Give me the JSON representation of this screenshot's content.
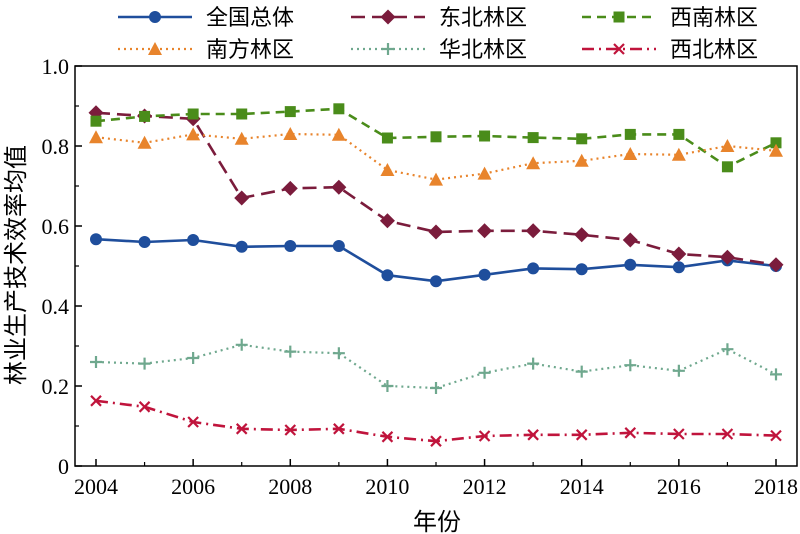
{
  "chart_data": {
    "type": "line",
    "xlabel": "年份",
    "ylabel": "林业生产技术效率均值",
    "xlim": [
      2004,
      2018
    ],
    "ylim": [
      0,
      1.0
    ],
    "x_ticks": [
      "2004",
      "2006",
      "2008",
      "2010",
      "2012",
      "2014",
      "2016",
      "2018"
    ],
    "y_ticks": [
      "0",
      "0.2",
      "0.4",
      "0.6",
      "0.8",
      "1.0"
    ],
    "x": [
      2004,
      2005,
      2006,
      2007,
      2008,
      2009,
      2010,
      2011,
      2012,
      2013,
      2014,
      2015,
      2016,
      2017,
      2018
    ],
    "legend_placement": "top",
    "series": [
      {
        "name": "全国总体",
        "color": "#1f4e9c",
        "marker": "circle",
        "dash": "solid",
        "values": [
          0.567,
          0.56,
          0.565,
          0.548,
          0.55,
          0.55,
          0.477,
          0.462,
          0.478,
          0.494,
          0.492,
          0.503,
          0.497,
          0.514,
          0.5
        ]
      },
      {
        "name": "东北林区",
        "color": "#7b1c3c",
        "marker": "diamond",
        "dash": "longdash",
        "values": [
          0.883,
          0.875,
          0.868,
          0.67,
          0.694,
          0.697,
          0.613,
          0.585,
          0.588,
          0.588,
          0.578,
          0.565,
          0.53,
          0.522,
          0.503
        ]
      },
      {
        "name": "西南林区",
        "color": "#4a8c1a",
        "marker": "square",
        "dash": "dash",
        "values": [
          0.862,
          0.874,
          0.88,
          0.88,
          0.886,
          0.893,
          0.82,
          0.823,
          0.825,
          0.821,
          0.818,
          0.829,
          0.829,
          0.748,
          0.808
        ]
      },
      {
        "name": "南方林区",
        "color": "#e8842c",
        "marker": "triangle",
        "dash": "dot",
        "values": [
          0.822,
          0.808,
          0.829,
          0.818,
          0.83,
          0.828,
          0.74,
          0.716,
          0.731,
          0.757,
          0.763,
          0.78,
          0.778,
          0.8,
          0.788
        ]
      },
      {
        "name": "华北林区",
        "color": "#6fa88e",
        "marker": "plus",
        "dash": "dot",
        "values": [
          0.26,
          0.256,
          0.27,
          0.303,
          0.286,
          0.282,
          0.2,
          0.195,
          0.233,
          0.256,
          0.236,
          0.252,
          0.238,
          0.292,
          0.229
        ]
      },
      {
        "name": "西北林区",
        "color": "#c0143c",
        "marker": "x",
        "dash": "dashdot",
        "values": [
          0.163,
          0.148,
          0.11,
          0.093,
          0.09,
          0.093,
          0.073,
          0.062,
          0.075,
          0.078,
          0.078,
          0.083,
          0.08,
          0.08,
          0.076
        ]
      }
    ]
  }
}
